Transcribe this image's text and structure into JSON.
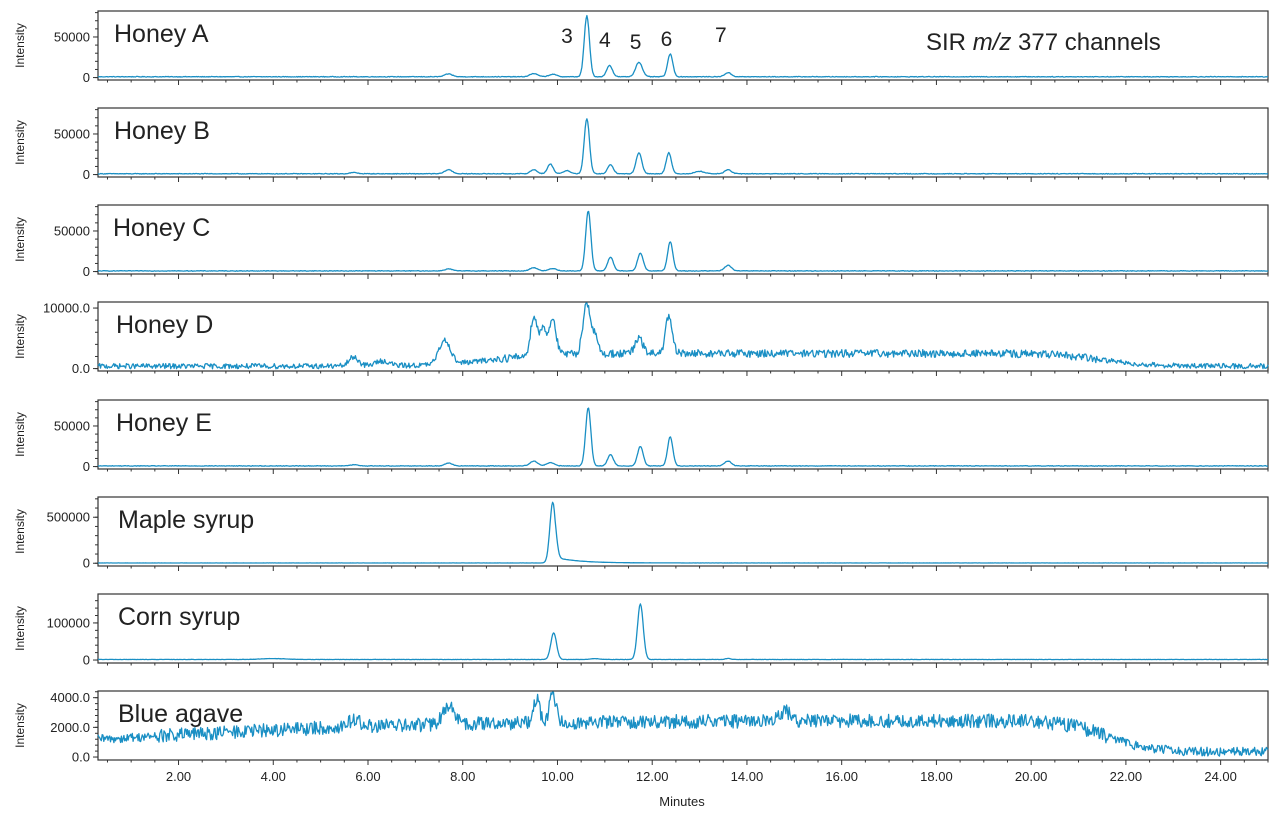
{
  "chart_data": {
    "type": "line",
    "x_range": [
      0.3,
      25.0
    ],
    "xlabel": "Minutes",
    "x_ticks": [
      2.0,
      4.0,
      6.0,
      8.0,
      10.0,
      12.0,
      14.0,
      16.0,
      18.0,
      20.0,
      22.0,
      24.0
    ],
    "x_tick_labels": [
      "2.00",
      "4.00",
      "6.00",
      "8.00",
      "10.00",
      "12.00",
      "14.00",
      "16.00",
      "18.00",
      "20.00",
      "22.00",
      "24.00"
    ],
    "annotation": {
      "prefix": "SIR ",
      "italic": "m/z",
      "suffix": " 377 channels"
    },
    "peak_labels": [
      {
        "label": "3",
        "x": 10.2
      },
      {
        "label": "4",
        "x": 11.0
      },
      {
        "label": "5",
        "x": 11.65
      },
      {
        "label": "6",
        "x": 12.3
      },
      {
        "label": "7",
        "x": 13.45
      }
    ],
    "panels": [
      {
        "name": "Honey A",
        "ylabel": "Intensity",
        "ylim": [
          -3000,
          82000
        ],
        "y_ticks": [
          0,
          50000
        ],
        "y_tick_labels": [
          "0",
          "50000"
        ],
        "baseline": 1000,
        "noise": 400,
        "tail": null,
        "peaks": [
          [
            7.7,
            3500,
            0.08
          ],
          [
            9.5,
            4000,
            0.08
          ],
          [
            9.9,
            3000,
            0.08
          ],
          [
            10.62,
            75000,
            0.055
          ],
          [
            11.1,
            14000,
            0.06
          ],
          [
            11.72,
            18000,
            0.07
          ],
          [
            12.38,
            28000,
            0.055
          ],
          [
            13.6,
            5000,
            0.07
          ]
        ]
      },
      {
        "name": "Honey B",
        "ylabel": "Intensity",
        "ylim": [
          -3000,
          82000
        ],
        "y_ticks": [
          0,
          50000
        ],
        "y_tick_labels": [
          "0",
          "50000"
        ],
        "baseline": 1000,
        "noise": 400,
        "tail": null,
        "peaks": [
          [
            5.7,
            1500,
            0.08
          ],
          [
            7.7,
            5000,
            0.08
          ],
          [
            9.5,
            5000,
            0.07
          ],
          [
            9.85,
            12000,
            0.06
          ],
          [
            10.2,
            4000,
            0.07
          ],
          [
            10.62,
            68000,
            0.055
          ],
          [
            11.12,
            11000,
            0.06
          ],
          [
            11.72,
            26000,
            0.06
          ],
          [
            12.35,
            26000,
            0.055
          ],
          [
            13.0,
            3000,
            0.1
          ],
          [
            13.6,
            5000,
            0.07
          ]
        ]
      },
      {
        "name": "Honey C",
        "ylabel": "Intensity",
        "ylim": [
          -3000,
          82000
        ],
        "y_ticks": [
          0,
          50000
        ],
        "y_tick_labels": [
          "0",
          "50000"
        ],
        "baseline": 800,
        "noise": 350,
        "tail": null,
        "peaks": [
          [
            7.7,
            2500,
            0.08
          ],
          [
            9.5,
            4000,
            0.08
          ],
          [
            9.9,
            3000,
            0.08
          ],
          [
            10.65,
            74000,
            0.055
          ],
          [
            11.12,
            17000,
            0.06
          ],
          [
            11.75,
            22000,
            0.06
          ],
          [
            12.38,
            36000,
            0.055
          ],
          [
            13.6,
            7000,
            0.07
          ]
        ]
      },
      {
        "name": "Honey D",
        "ylabel": "Intensity",
        "ylim": [
          -400,
          11000
        ],
        "y_ticks": [
          0,
          10000
        ],
        "y_tick_labels": [
          "0.0",
          "10000.0"
        ],
        "baseline": 400,
        "noise": 250,
        "plateau": {
          "start": 8.6,
          "end": 21.5,
          "level": 2100,
          "rise": 0.6,
          "fall": 0.5
        },
        "peaks": [
          [
            5.7,
            1500,
            0.1
          ],
          [
            6.3,
            800,
            0.15
          ],
          [
            7.62,
            4000,
            0.12
          ],
          [
            9.5,
            6500,
            0.07
          ],
          [
            9.7,
            4500,
            0.07
          ],
          [
            9.9,
            6000,
            0.07
          ],
          [
            10.62,
            8500,
            0.08
          ],
          [
            10.8,
            2500,
            0.06
          ],
          [
            11.72,
            2500,
            0.08
          ],
          [
            12.35,
            6000,
            0.07
          ]
        ]
      },
      {
        "name": "Honey E",
        "ylabel": "Intensity",
        "ylim": [
          -3000,
          82000
        ],
        "y_ticks": [
          0,
          50000
        ],
        "y_tick_labels": [
          "0",
          "50000"
        ],
        "baseline": 800,
        "noise": 350,
        "tail": null,
        "peaks": [
          [
            5.7,
            1500,
            0.08
          ],
          [
            7.7,
            3500,
            0.08
          ],
          [
            9.5,
            6000,
            0.08
          ],
          [
            9.85,
            4000,
            0.08
          ],
          [
            10.65,
            72000,
            0.055
          ],
          [
            11.12,
            14000,
            0.06
          ],
          [
            11.75,
            24000,
            0.06
          ],
          [
            12.38,
            36000,
            0.055
          ],
          [
            13.6,
            6000,
            0.07
          ]
        ]
      },
      {
        "name": "Maple syrup",
        "ylabel": "Intensity",
        "ylim": [
          -30000,
          720000
        ],
        "y_ticks": [
          0,
          500000
        ],
        "y_tick_labels": [
          "0",
          "500000"
        ],
        "baseline": 3000,
        "noise": 400,
        "peaks": [
          [
            9.9,
            660000,
            0.06
          ]
        ],
        "tail": {
          "start": 9.95,
          "amp": 60000,
          "decay": 0.5
        }
      },
      {
        "name": "Corn syrup",
        "ylabel": "Intensity",
        "ylim": [
          -8000,
          178000
        ],
        "y_ticks": [
          0,
          100000
        ],
        "y_tick_labels": [
          "0",
          "100000"
        ],
        "baseline": 1500,
        "noise": 350,
        "tail": null,
        "peaks": [
          [
            4.0,
            2500,
            0.25
          ],
          [
            9.92,
            72000,
            0.06
          ],
          [
            10.8,
            2000,
            0.1
          ],
          [
            11.75,
            150000,
            0.06
          ],
          [
            13.6,
            3000,
            0.05
          ]
        ]
      },
      {
        "name": "Blue agave",
        "ylabel": "Intensity",
        "ylim": [
          -200,
          4450
        ],
        "y_ticks": [
          0,
          2000,
          4000
        ],
        "y_tick_labels": [
          "0.0",
          "2000.0",
          "4000.0"
        ],
        "baseline": 350,
        "noise": 180,
        "plateau": {
          "start": 1.5,
          "end": 21.6,
          "level": 2100,
          "rise": 3.0,
          "fall": 0.45
        },
        "peaks": [
          [
            5.7,
            500,
            0.12
          ],
          [
            7.7,
            1200,
            0.12
          ],
          [
            9.55,
            1600,
            0.07
          ],
          [
            9.9,
            1800,
            0.07
          ],
          [
            14.8,
            700,
            0.1
          ]
        ]
      }
    ]
  }
}
